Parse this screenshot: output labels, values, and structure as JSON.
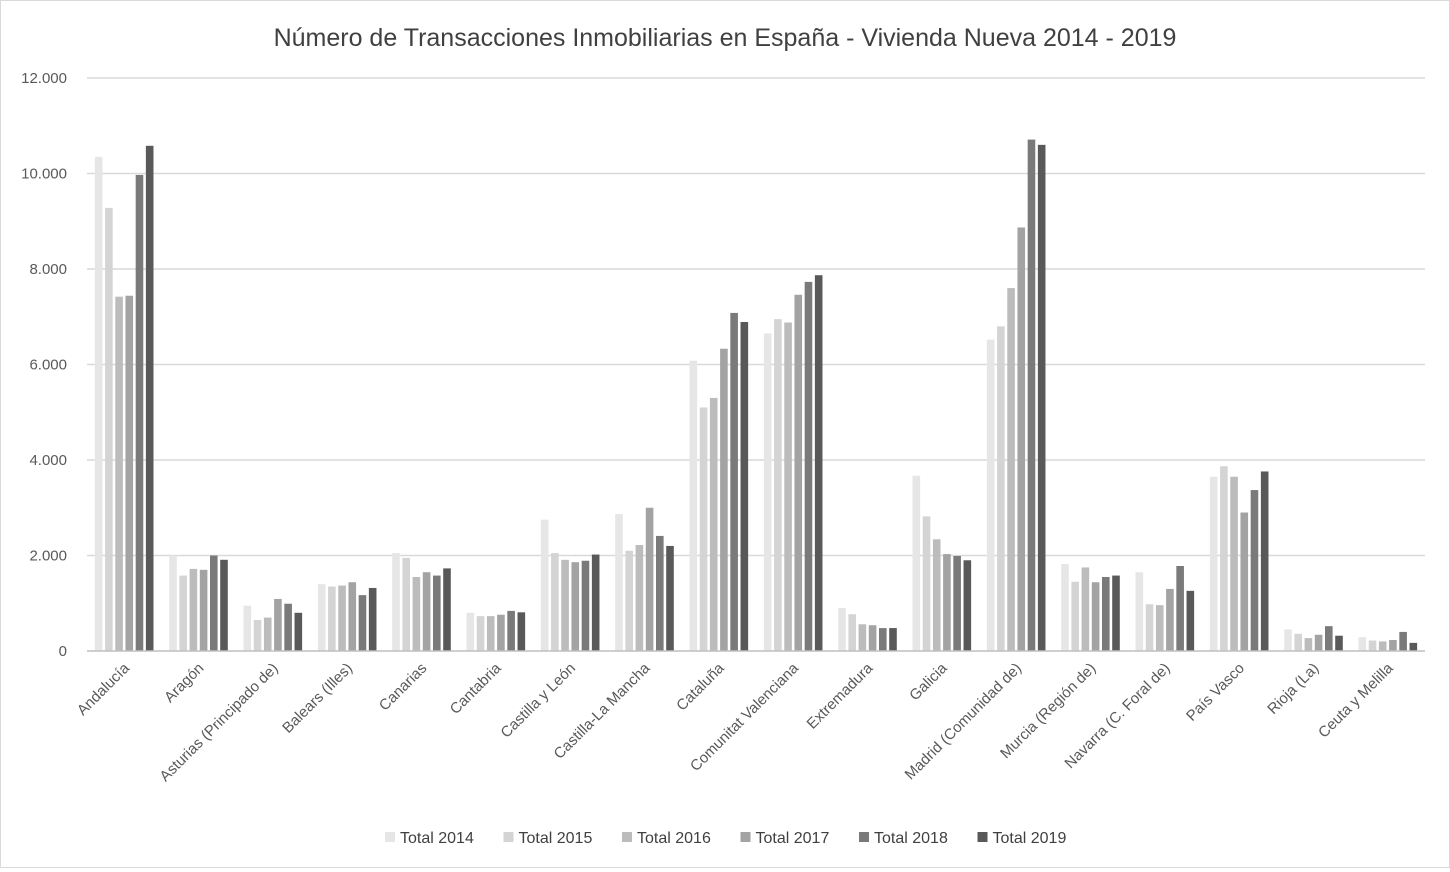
{
  "chart_data": {
    "type": "bar",
    "title": "Número de Transacciones Inmobiliarias en España - Vivienda Nueva 2014 - 2019",
    "xlabel": "",
    "ylabel": "",
    "ylim": [
      0,
      12000
    ],
    "yticks": [
      0,
      2000,
      4000,
      6000,
      8000,
      10000,
      12000
    ],
    "ytick_labels": [
      "0",
      "2.000",
      "4.000",
      "6.000",
      "8.000",
      "10.000",
      "12.000"
    ],
    "grid": true,
    "legend_position": "bottom",
    "categories": [
      "Andalucía",
      "Aragón",
      "Asturias (Principado de)",
      "Balears (Illes)",
      "Canarias",
      "Cantabria",
      "Castilla y León",
      "Castilla-La Mancha",
      "Cataluña",
      "Comunitat Valenciana",
      "Extremadura",
      "Galicia",
      "Madrid (Comunidad de)",
      "Murcia (Región de)",
      "Navarra (C. Foral de)",
      "País Vasco",
      "Rioja (La)",
      "Ceuta y Melilla"
    ],
    "series": [
      {
        "name": "Total 2014",
        "color": "#e6e6e6",
        "values": [
          10350,
          2000,
          950,
          1400,
          2050,
          800,
          2750,
          2870,
          6080,
          6650,
          900,
          3670,
          6520,
          1820,
          1650,
          3650,
          450,
          290
        ]
      },
      {
        "name": "Total 2015",
        "color": "#d4d4d4",
        "values": [
          9280,
          1580,
          650,
          1350,
          1950,
          730,
          2050,
          2100,
          5100,
          6950,
          770,
          2820,
          6800,
          1450,
          980,
          3870,
          360,
          220
        ]
      },
      {
        "name": "Total 2016",
        "color": "#bcbcbc",
        "values": [
          7420,
          1720,
          700,
          1370,
          1550,
          730,
          1910,
          2220,
          5300,
          6880,
          560,
          2340,
          7600,
          1750,
          960,
          3650,
          270,
          200
        ]
      },
      {
        "name": "Total 2017",
        "color": "#a3a3a3",
        "values": [
          7440,
          1700,
          1090,
          1440,
          1650,
          760,
          1860,
          3000,
          6330,
          7460,
          540,
          2030,
          8870,
          1440,
          1300,
          2900,
          340,
          230
        ]
      },
      {
        "name": "Total 2018",
        "color": "#7a7a7a",
        "values": [
          9970,
          2000,
          990,
          1170,
          1580,
          840,
          1890,
          2410,
          7080,
          7730,
          480,
          1990,
          10710,
          1550,
          1780,
          3370,
          520,
          400
        ]
      },
      {
        "name": "Total 2019",
        "color": "#595959",
        "values": [
          10580,
          1910,
          800,
          1320,
          1730,
          810,
          2020,
          2200,
          6890,
          7870,
          480,
          1900,
          10600,
          1580,
          1260,
          3760,
          320,
          170
        ]
      }
    ]
  }
}
